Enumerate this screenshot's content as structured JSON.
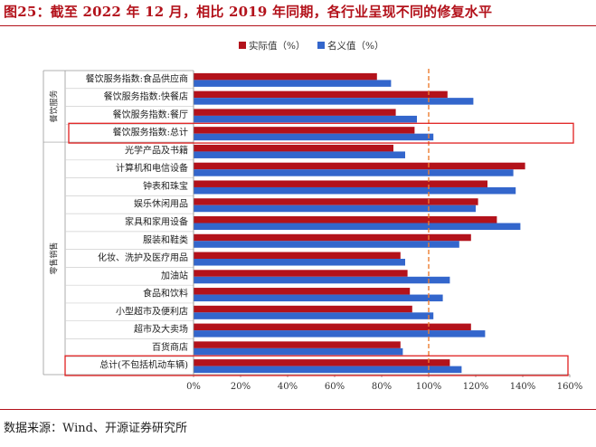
{
  "figure_title": "图25：截至 2022 年 12 月，相比 2019 年同期，各行业呈现不同的修复水平",
  "source": "数据来源：Wind、开源证券研究所",
  "colors": {
    "actual": "#b3121b",
    "nominal": "#3366cc",
    "reference_line": "#ed7d31",
    "highlight_box": "#e02020",
    "title": "#b3121b"
  },
  "chart_data": {
    "type": "bar",
    "orientation": "horizontal",
    "title": "",
    "xlabel": "",
    "ylabel": "",
    "xlim": [
      0,
      160
    ],
    "x_ticks": [
      0,
      20,
      40,
      60,
      80,
      100,
      120,
      140,
      160
    ],
    "x_tick_suffix": "%",
    "grid": false,
    "legend_position": "top-center",
    "reference_line": {
      "x": 100,
      "style": "dashed"
    },
    "categories": [
      "餐饮服务指数:食品供应商",
      "餐饮服务指数:快餐店",
      "餐饮服务指数:餐厅",
      "餐饮服务指数:总计",
      "光学产品及书籍",
      "计算机和电信设备",
      "钟表和珠宝",
      "娱乐休闲用品",
      "家具和家用设备",
      "服装和鞋类",
      "化妆、洗护及医疗用品",
      "加油站",
      "食品和饮料",
      "小型超市及便利店",
      "超市及大卖场",
      "百货商店",
      "总计(不包括机动车辆)"
    ],
    "groups": [
      {
        "label": "餐饮服务",
        "from": 0,
        "to": 3
      },
      {
        "label": "零售销售",
        "from": 4,
        "to": 16
      }
    ],
    "highlighted": [
      3,
      16
    ],
    "series": [
      {
        "name": "实际值（%）",
        "values": [
          78,
          108,
          86,
          94,
          85,
          141,
          125,
          121,
          129,
          118,
          88,
          91,
          92,
          93,
          118,
          88,
          109
        ]
      },
      {
        "name": "名义值（%）",
        "values": [
          84,
          119,
          95,
          102,
          90,
          136,
          137,
          120,
          139,
          113,
          90,
          109,
          106,
          102,
          124,
          89,
          114
        ]
      }
    ]
  }
}
